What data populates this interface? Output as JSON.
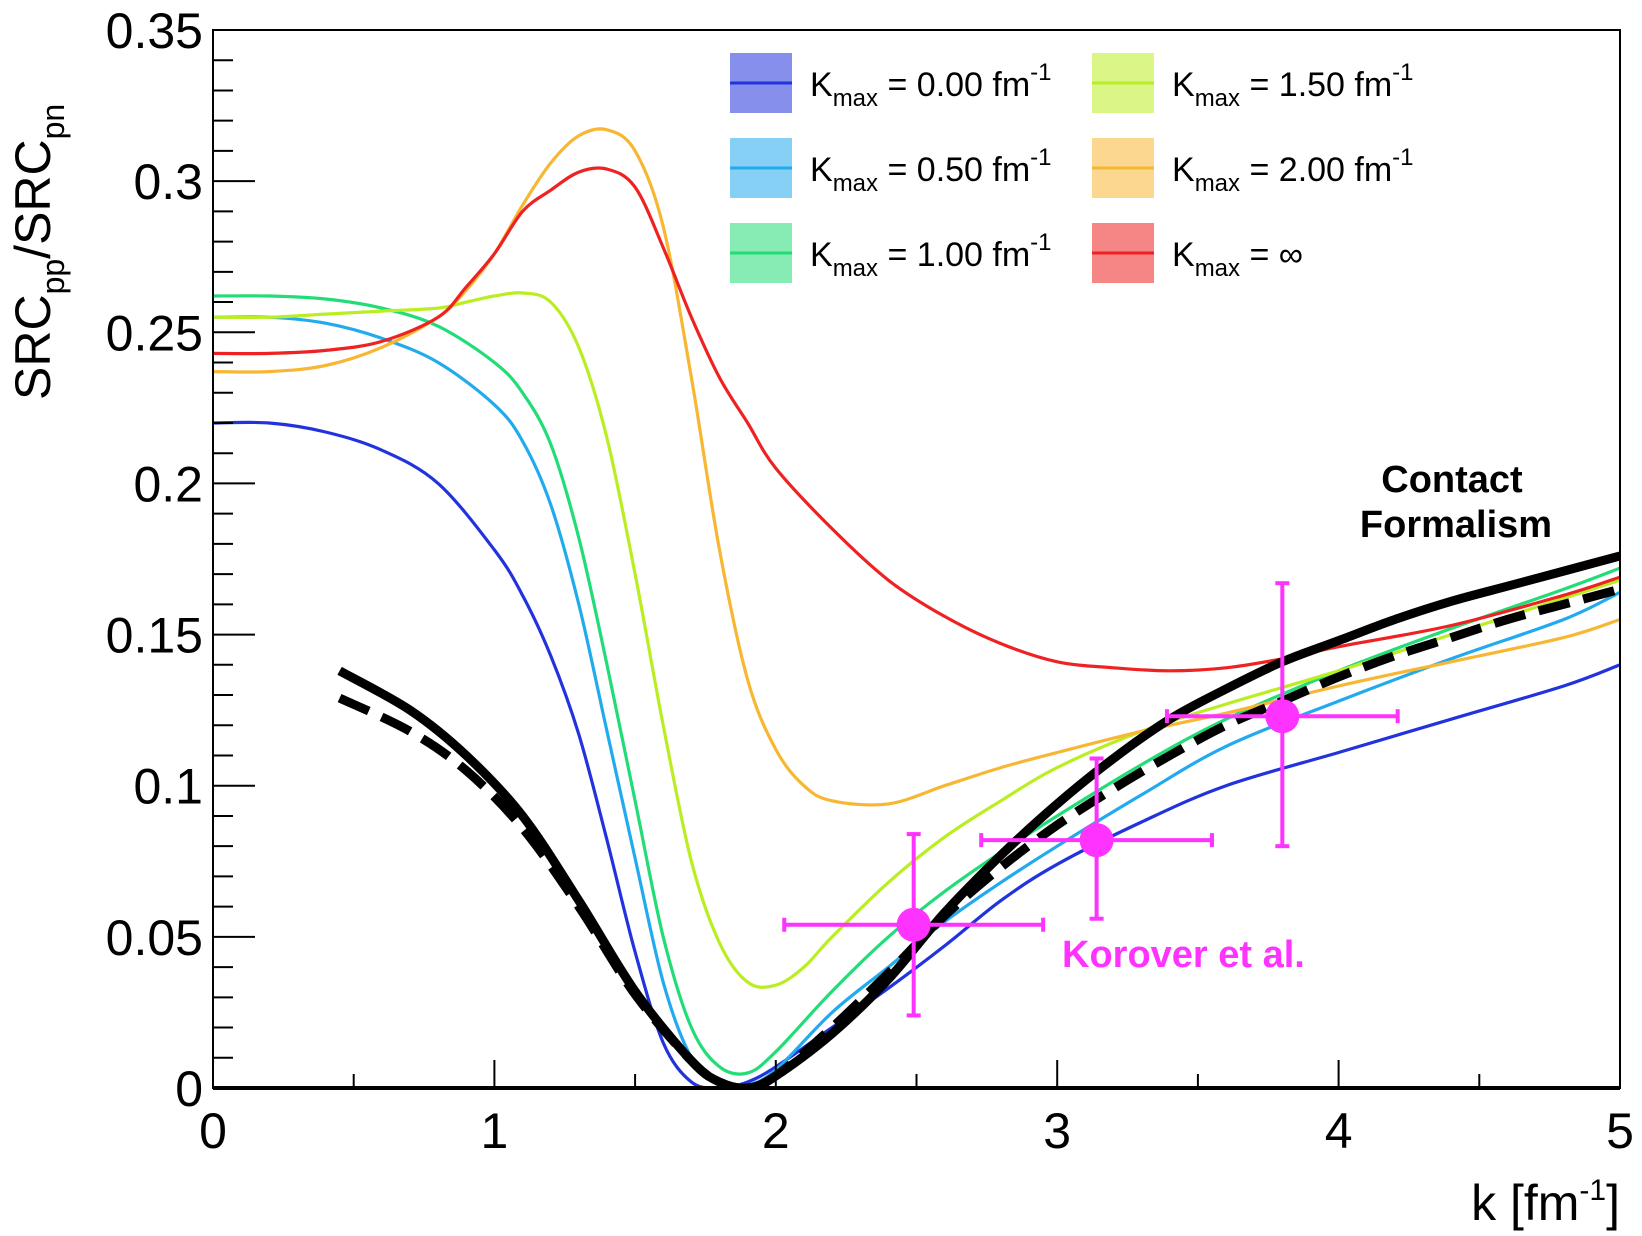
{
  "chart_data": {
    "type": "line",
    "title": "",
    "xlabel": "k [fm",
    "xlabel_sup": "-1",
    "xlabel_end": "]",
    "ylabel_parts": [
      {
        "text": "SRC",
        "sub": "pp"
      },
      {
        "text": "/SRC",
        "sub": "pn"
      }
    ],
    "xlim": [
      0,
      5
    ],
    "ylim": [
      0,
      0.35
    ],
    "xticks": [
      0,
      1,
      2,
      3,
      4,
      5
    ],
    "xtick_labels": [
      "0",
      "1",
      "2",
      "3",
      "4",
      "5"
    ],
    "yticks": [
      0,
      0.05,
      0.1,
      0.15,
      0.2,
      0.25,
      0.3,
      0.35
    ],
    "ytick_labels": [
      "0",
      "0.05",
      "0.1",
      "0.15",
      "0.2",
      "0.25",
      "0.3",
      "0.35"
    ],
    "legend_position": "top-right",
    "series": [
      {
        "name": "Kmax = 0.00 fm-1",
        "legend_main": "K",
        "legend_sub": "max",
        "legend_rest": " = 0.00 fm",
        "legend_sup": "-1",
        "color": "#2233dd",
        "x": [
          0,
          0.2,
          0.4,
          0.6,
          0.8,
          1.0,
          1.1,
          1.2,
          1.3,
          1.4,
          1.5,
          1.6,
          1.7,
          1.8,
          1.9,
          2.0,
          2.2,
          2.4,
          2.6,
          2.8,
          3.0,
          3.3,
          3.6,
          4.0,
          4.4,
          4.8,
          5.0
        ],
        "y": [
          0.22,
          0.22,
          0.217,
          0.211,
          0.2,
          0.178,
          0.163,
          0.143,
          0.117,
          0.082,
          0.045,
          0.015,
          0.002,
          0.0,
          0.002,
          0.007,
          0.02,
          0.033,
          0.047,
          0.062,
          0.074,
          0.088,
          0.1,
          0.111,
          0.122,
          0.133,
          0.14
        ]
      },
      {
        "name": "Kmax = 0.50 fm-1",
        "legend_main": "K",
        "legend_sub": "max",
        "legend_rest": " = 0.50 fm",
        "legend_sup": "-1",
        "color": "#22aaee",
        "x": [
          0,
          0.2,
          0.4,
          0.6,
          0.8,
          1.0,
          1.1,
          1.2,
          1.3,
          1.4,
          1.5,
          1.6,
          1.7,
          1.8,
          1.9,
          2.0,
          2.2,
          2.4,
          2.6,
          2.8,
          3.0,
          3.3,
          3.6,
          4.0,
          4.4,
          4.8,
          5.0
        ],
        "y": [
          0.255,
          0.255,
          0.253,
          0.248,
          0.24,
          0.226,
          0.214,
          0.193,
          0.16,
          0.118,
          0.076,
          0.035,
          0.01,
          0.001,
          0.001,
          0.006,
          0.025,
          0.04,
          0.055,
          0.068,
          0.08,
          0.097,
          0.113,
          0.128,
          0.142,
          0.155,
          0.164
        ]
      },
      {
        "name": "Kmax = 1.00 fm-1",
        "legend_main": "K",
        "legend_sub": "max",
        "legend_rest": " = 1.00 fm",
        "legend_sup": "-1",
        "color": "#22dd77",
        "x": [
          0,
          0.2,
          0.4,
          0.6,
          0.8,
          1.0,
          1.1,
          1.2,
          1.3,
          1.4,
          1.5,
          1.6,
          1.7,
          1.8,
          1.9,
          2.0,
          2.2,
          2.4,
          2.6,
          2.8,
          3.0,
          3.3,
          3.6,
          4.0,
          4.4,
          4.8,
          5.0
        ],
        "y": [
          0.262,
          0.262,
          0.261,
          0.258,
          0.252,
          0.24,
          0.23,
          0.213,
          0.182,
          0.14,
          0.095,
          0.05,
          0.02,
          0.007,
          0.005,
          0.012,
          0.032,
          0.05,
          0.065,
          0.078,
          0.09,
          0.107,
          0.122,
          0.138,
          0.152,
          0.165,
          0.172
        ]
      },
      {
        "name": "Kmax = 1.50 fm-1",
        "legend_main": "K",
        "legend_sub": "max",
        "legend_rest": " = 1.50 fm",
        "legend_sup": "-1",
        "color": "#bbee22",
        "x": [
          0,
          0.2,
          0.4,
          0.6,
          0.8,
          0.9,
          1.0,
          1.1,
          1.2,
          1.3,
          1.4,
          1.5,
          1.6,
          1.7,
          1.8,
          1.9,
          2.0,
          2.1,
          2.2,
          2.4,
          2.6,
          2.8,
          3.0,
          3.3,
          3.6,
          4.0,
          4.4,
          4.8,
          5.0
        ],
        "y": [
          0.255,
          0.255,
          0.256,
          0.257,
          0.258,
          0.26,
          0.262,
          0.263,
          0.26,
          0.245,
          0.215,
          0.17,
          0.12,
          0.075,
          0.048,
          0.035,
          0.034,
          0.04,
          0.05,
          0.068,
          0.083,
          0.095,
          0.106,
          0.118,
          0.127,
          0.138,
          0.15,
          0.162,
          0.168
        ]
      },
      {
        "name": "Kmax = 2.00 fm-1",
        "legend_main": "K",
        "legend_sub": "max",
        "legend_rest": " = 2.00 fm",
        "legend_sup": "-1",
        "color": "#f7b733",
        "x": [
          0,
          0.2,
          0.4,
          0.6,
          0.8,
          0.9,
          1.0,
          1.1,
          1.2,
          1.3,
          1.4,
          1.5,
          1.6,
          1.7,
          1.8,
          1.9,
          2.0,
          2.1,
          2.2,
          2.4,
          2.6,
          2.8,
          3.0,
          3.3,
          3.6,
          4.0,
          4.4,
          4.8,
          5.0
        ],
        "y": [
          0.237,
          0.237,
          0.239,
          0.245,
          0.255,
          0.264,
          0.276,
          0.292,
          0.306,
          0.315,
          0.317,
          0.31,
          0.285,
          0.235,
          0.178,
          0.135,
          0.112,
          0.1,
          0.095,
          0.094,
          0.1,
          0.106,
          0.111,
          0.118,
          0.124,
          0.133,
          0.141,
          0.149,
          0.155
        ]
      },
      {
        "name": "Kmax = ∞",
        "legend_main": "K",
        "legend_sub": "max",
        "legend_rest": " = ∞",
        "legend_sup": "",
        "color": "#ee2222",
        "x": [
          0,
          0.2,
          0.4,
          0.6,
          0.8,
          0.9,
          1.0,
          1.1,
          1.2,
          1.3,
          1.4,
          1.5,
          1.6,
          1.7,
          1.8,
          1.9,
          2.0,
          2.2,
          2.4,
          2.6,
          2.8,
          3.0,
          3.2,
          3.4,
          3.6,
          3.8,
          4.0,
          4.4,
          4.8,
          5.0
        ],
        "y": [
          0.243,
          0.243,
          0.244,
          0.247,
          0.255,
          0.265,
          0.276,
          0.29,
          0.297,
          0.303,
          0.304,
          0.298,
          0.278,
          0.255,
          0.235,
          0.22,
          0.205,
          0.185,
          0.168,
          0.156,
          0.147,
          0.141,
          0.139,
          0.138,
          0.139,
          0.142,
          0.146,
          0.153,
          0.163,
          0.169
        ]
      }
    ],
    "contact_formalism_solid": {
      "x": [
        0.45,
        0.7,
        0.9,
        1.1,
        1.3,
        1.5,
        1.7,
        1.8,
        1.9,
        2.0,
        2.2,
        2.4,
        2.6,
        2.8,
        3.0,
        3.2,
        3.4,
        3.6,
        3.8,
        4.0,
        4.2,
        4.4,
        4.6,
        4.8,
        5.0
      ],
      "y": [
        0.138,
        0.125,
        0.11,
        0.09,
        0.062,
        0.032,
        0.009,
        0.002,
        0.0,
        0.004,
        0.018,
        0.036,
        0.058,
        0.077,
        0.094,
        0.109,
        0.122,
        0.132,
        0.141,
        0.148,
        0.155,
        0.161,
        0.166,
        0.171,
        0.176
      ]
    },
    "contact_formalism_dashed": {
      "x": [
        0.45,
        0.7,
        0.9,
        1.1,
        1.3,
        1.5,
        1.7,
        1.8,
        1.9,
        2.0,
        2.2,
        2.4,
        2.6,
        2.8,
        3.0,
        3.2,
        3.4,
        3.6,
        3.8,
        4.0,
        4.2,
        4.4,
        4.6,
        4.8,
        5.0
      ],
      "y": [
        0.129,
        0.118,
        0.105,
        0.086,
        0.06,
        0.031,
        0.009,
        0.002,
        0.0,
        0.004,
        0.02,
        0.038,
        0.057,
        0.073,
        0.087,
        0.099,
        0.11,
        0.12,
        0.128,
        0.136,
        0.143,
        0.149,
        0.155,
        0.16,
        0.165
      ]
    },
    "korover_points": [
      {
        "x": 2.49,
        "y": 0.054,
        "xerr": 0.46,
        "yerr_low": 0.03,
        "yerr_high": 0.03
      },
      {
        "x": 3.14,
        "y": 0.082,
        "xerr": 0.41,
        "yerr_low": 0.026,
        "yerr_high": 0.027
      },
      {
        "x": 3.8,
        "y": 0.123,
        "xerr": 0.41,
        "yerr_low": 0.043,
        "yerr_high": 0.044
      }
    ],
    "annotations": {
      "contact_line1": "Contact",
      "contact_line2": "Formalism",
      "korover": "Korover et al."
    },
    "colors": {
      "korover": "#ff33ff",
      "contact": "#000000"
    }
  }
}
